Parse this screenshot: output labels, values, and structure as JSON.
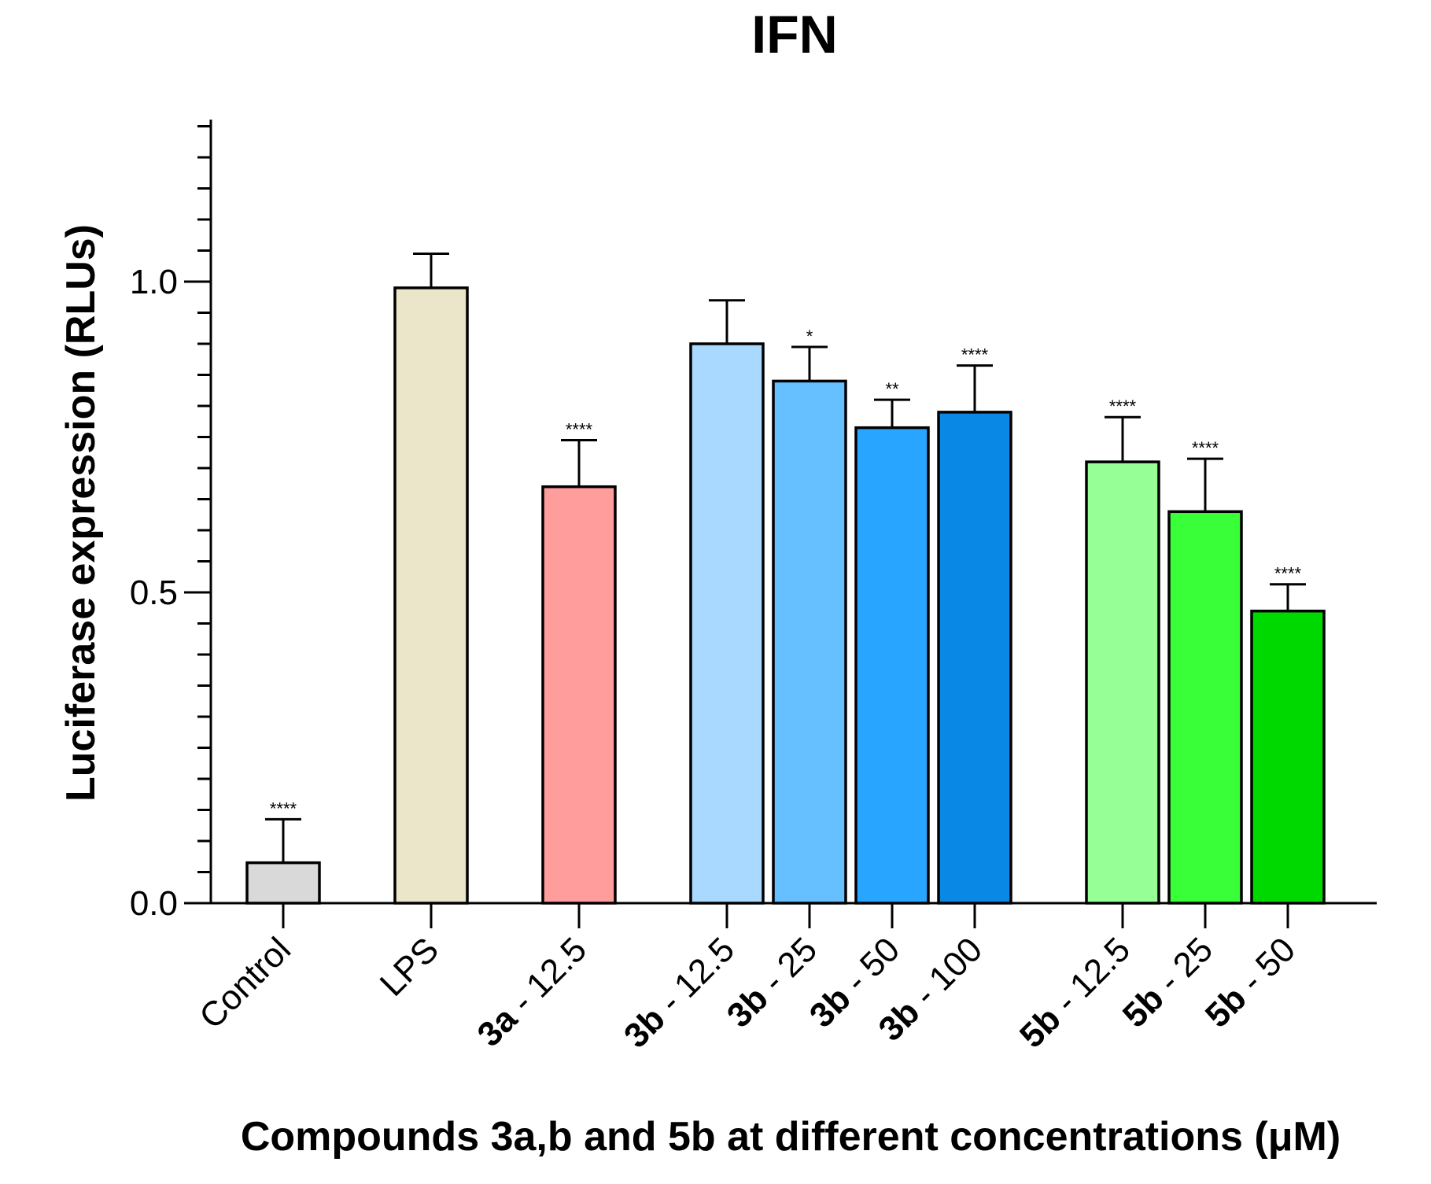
{
  "chart_data": {
    "type": "bar",
    "title": "IFN",
    "xlabel": "Compounds 3a,b and 5b at different concentrations (μM)",
    "ylabel": "Luciferase expression (RLUs)",
    "ylim": [
      0,
      1.25
    ],
    "yticks": [
      0.0,
      0.5,
      1.0
    ],
    "ytick_labels": [
      "0.0",
      "0.5",
      "1.0"
    ],
    "minor_tick_step": 0.05,
    "grid": false,
    "categories": [
      {
        "prefix": "",
        "suffix": "Control"
      },
      {
        "prefix": "",
        "suffix": "LPS"
      },
      {
        "prefix": "3a",
        "suffix": " - 12.5"
      },
      {
        "prefix": "3b",
        "suffix": " - 12.5"
      },
      {
        "prefix": "3b",
        "suffix": " - 25"
      },
      {
        "prefix": "3b",
        "suffix": " - 50"
      },
      {
        "prefix": "3b",
        "suffix": " - 100"
      },
      {
        "prefix": "5b",
        "suffix": " - 12.5"
      },
      {
        "prefix": "5b",
        "suffix": " - 25"
      },
      {
        "prefix": "5b",
        "suffix": " - 50"
      }
    ],
    "groups": [
      0,
      1,
      2,
      3,
      3,
      3,
      3,
      4,
      4,
      4
    ],
    "values": [
      0.065,
      0.99,
      0.67,
      0.9,
      0.84,
      0.765,
      0.79,
      0.71,
      0.63,
      0.47
    ],
    "errors": [
      0.07,
      0.055,
      0.075,
      0.07,
      0.055,
      0.045,
      0.075,
      0.072,
      0.085,
      0.043
    ],
    "significance": [
      "****",
      "",
      "****",
      "",
      "*",
      "**",
      "****",
      "****",
      "****",
      "****"
    ],
    "colors": [
      "#d9d9d9",
      "#ebe6c9",
      "#ff9c9c",
      "#a9d9ff",
      "#66bfff",
      "#28a6ff",
      "#0a88e6",
      "#96ff96",
      "#38ff38",
      "#00d900"
    ]
  }
}
